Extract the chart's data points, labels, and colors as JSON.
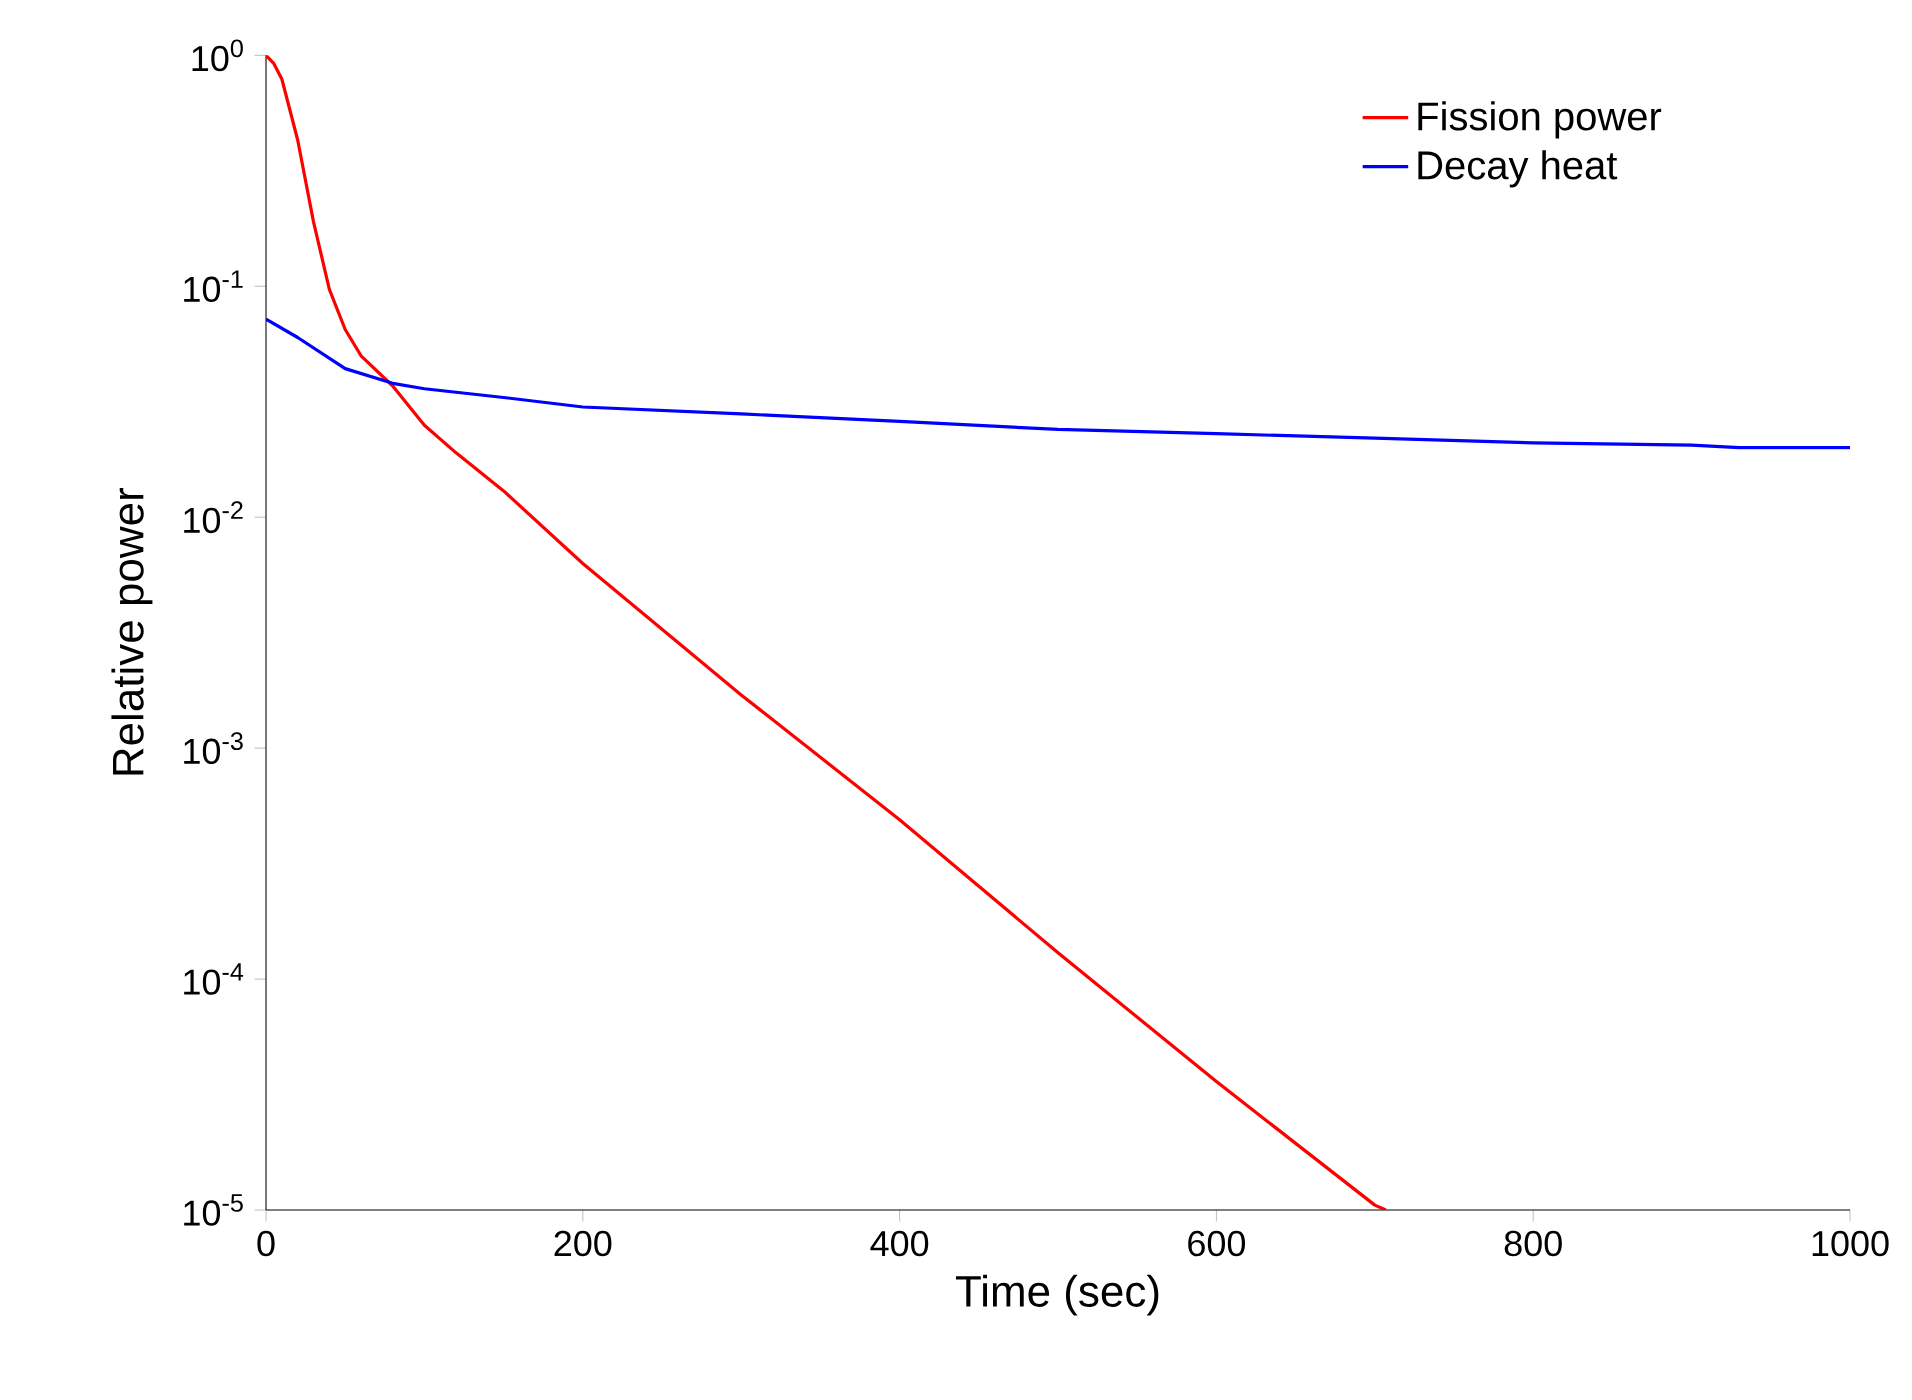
{
  "chart_data": {
    "type": "line",
    "xlabel": "Time (sec)",
    "ylabel": "Relative power",
    "log": true,
    "legend": "top right",
    "xlim": [
      0,
      1000
    ],
    "ylim": [
      1e-05,
      1
    ],
    "xticks": [
      0,
      200,
      400,
      600,
      800,
      1000
    ],
    "yticks": [
      {
        "value": 1e-05,
        "label": "10$^{-5}$"
      },
      {
        "value": 0.0001,
        "label": "10$^{-4}$"
      },
      {
        "value": 0.001,
        "label": "10$^{-3}$"
      },
      {
        "value": 0.01,
        "label": "10$^{-2}$"
      },
      {
        "value": 0.1,
        "label": "10$^{-1}$"
      },
      {
        "value": 1,
        "label": "10$^{0}$"
      }
    ],
    "series": [
      {
        "name": "Fission power",
        "color": "#ff0000",
        "x": [
          0,
          5,
          10,
          20,
          30,
          40,
          50,
          60,
          80,
          100,
          120,
          150,
          200,
          300,
          400,
          500,
          600,
          700,
          707
        ],
        "values": [
          1.0,
          0.92,
          0.79,
          0.43,
          0.19,
          0.097,
          0.065,
          0.05,
          0.037,
          0.025,
          0.019,
          0.013,
          0.0063,
          0.0017,
          0.00049,
          0.00013,
          3.6e-05,
          1.05e-05,
          1e-05
        ]
      },
      {
        "name": "Decay heat",
        "color": "#0000ff",
        "x": [
          0,
          20,
          50,
          80,
          100,
          150,
          200,
          300,
          400,
          500,
          600,
          700,
          800,
          900,
          930,
          1000
        ],
        "values": [
          0.072,
          0.06,
          0.044,
          0.038,
          0.036,
          0.033,
          0.03,
          0.028,
          0.026,
          0.024,
          0.023,
          0.022,
          0.021,
          0.0205,
          0.02,
          0.02
        ]
      }
    ]
  }
}
